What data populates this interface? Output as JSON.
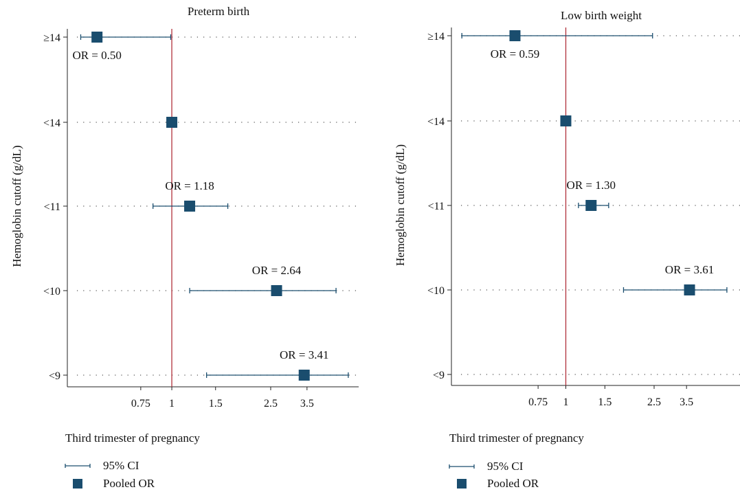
{
  "colors": {
    "series": "#1a4d6e",
    "reference_line": "#b0303a",
    "grid": "#555555"
  },
  "chart_data": [
    {
      "type": "forest",
      "title": "Preterm birth",
      "ylabel": "Hemoglobin cutoff (g/dL)",
      "subtitle": "Third trimester of pregnancy",
      "categories": [
        "≥14",
        "<14",
        "<11",
        "<10",
        "<9"
      ],
      "x_scale": "log",
      "x_ticks": [
        "0.75",
        "1",
        "1.5",
        "2.5",
        "3.5"
      ],
      "xlim": [
        0.41,
        5.3
      ],
      "reference_x": 1,
      "grid": "horizontal dotted",
      "points": [
        {
          "category": "≥14",
          "or": 0.5,
          "ci": [
            0.43,
            0.99
          ],
          "label": "OR = 0.50",
          "label_pos": "below"
        },
        {
          "category": "<14",
          "or": 1.0,
          "ci": null,
          "label": "",
          "label_pos": "none"
        },
        {
          "category": "<11",
          "or": 1.18,
          "ci": [
            0.84,
            1.68
          ],
          "label": "OR = 1.18",
          "label_pos": "above"
        },
        {
          "category": "<10",
          "or": 2.64,
          "ci": [
            1.18,
            4.58
          ],
          "label": "OR = 2.64",
          "label_pos": "above"
        },
        {
          "category": "<9",
          "or": 3.41,
          "ci": [
            1.38,
            5.13
          ],
          "label": "OR = 3.41",
          "label_pos": "above"
        }
      ],
      "legend": {
        "placement": "bottom-left",
        "items": [
          {
            "kind": "ci",
            "label": "95% CI"
          },
          {
            "kind": "point",
            "label": "Pooled OR"
          }
        ]
      }
    },
    {
      "type": "forest",
      "title": "Low birth weight",
      "ylabel": "Hemoglobin cutoff (g/dL)",
      "subtitle": "Third trimester of pregnancy",
      "categories": [
        "≥14",
        "<14",
        "<11",
        "<10",
        "<9"
      ],
      "x_scale": "log",
      "x_ticks": [
        "0.75",
        "1",
        "1.5",
        "2.5",
        "3.5"
      ],
      "xlim": [
        0.33,
        5.4
      ],
      "reference_x": 1,
      "grid": "horizontal dotted",
      "points": [
        {
          "category": "≥14",
          "or": 0.59,
          "ci": [
            0.34,
            2.46
          ],
          "label": "OR = 0.59",
          "label_pos": "below"
        },
        {
          "category": "<14",
          "or": 1.0,
          "ci": null,
          "label": "",
          "label_pos": "none"
        },
        {
          "category": "<11",
          "or": 1.3,
          "ci": [
            1.14,
            1.56
          ],
          "label": "OR = 1.30",
          "label_pos": "above"
        },
        {
          "category": "<10",
          "or": 3.61,
          "ci": [
            1.82,
            5.32
          ],
          "label": "OR = 3.61",
          "label_pos": "above"
        },
        {
          "category": "<9",
          "or": null,
          "ci": null,
          "label": "",
          "label_pos": "none"
        }
      ],
      "legend": {
        "placement": "bottom-left",
        "items": [
          {
            "kind": "ci",
            "label": "95% CI"
          },
          {
            "kind": "point",
            "label": "Pooled OR"
          }
        ]
      }
    }
  ]
}
